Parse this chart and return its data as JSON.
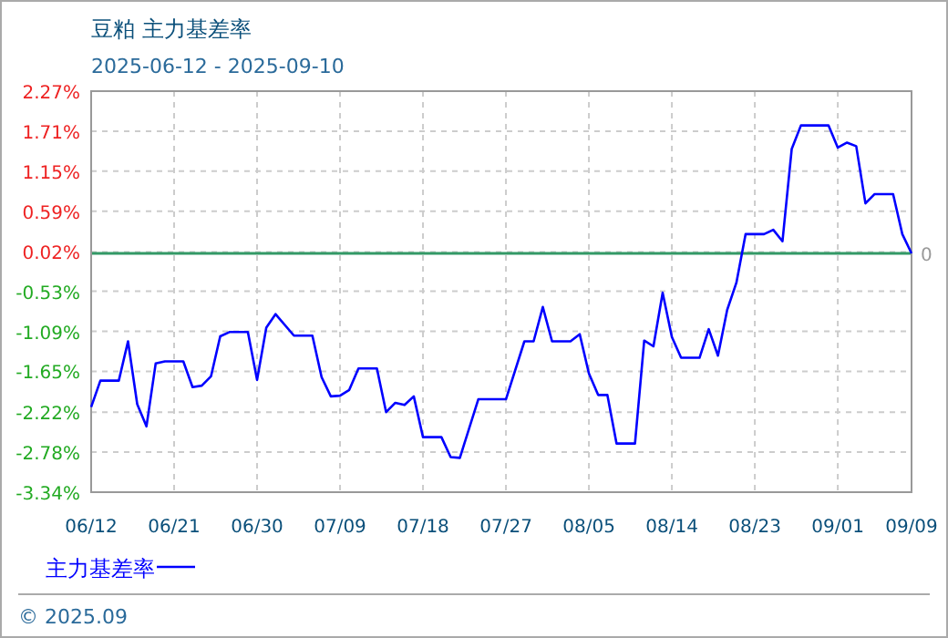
{
  "chart_data": {
    "type": "line",
    "title": "豆粕 主力基差率",
    "subtitle": "2025-06-12 - 2025-09-10",
    "annotations": [
      "© 2025.09"
    ],
    "x": [
      "2025-06-12",
      "2025-06-13",
      "2025-06-15",
      "2025-06-16",
      "2025-06-17",
      "2025-06-18",
      "2025-06-19",
      "2025-06-20",
      "2025-06-22",
      "2025-06-23",
      "2025-06-24",
      "2025-06-25",
      "2025-06-26",
      "2025-06-27",
      "2025-06-29",
      "2025-06-30",
      "2025-07-01",
      "2025-07-02",
      "2025-07-04",
      "2025-07-06",
      "2025-07-07",
      "2025-07-08",
      "2025-07-09",
      "2025-07-10",
      "2025-07-11",
      "2025-07-13",
      "2025-07-14",
      "2025-07-15",
      "2025-07-16",
      "2025-07-17",
      "2025-07-18",
      "2025-07-20",
      "2025-07-21",
      "2025-07-22",
      "2025-07-24",
      "2025-07-27",
      "2025-07-29",
      "2025-07-30",
      "2025-07-31",
      "2025-08-01",
      "2025-08-03",
      "2025-08-04",
      "2025-08-05",
      "2025-08-06",
      "2025-08-07",
      "2025-08-08",
      "2025-08-10",
      "2025-08-11",
      "2025-08-12",
      "2025-08-13",
      "2025-08-14",
      "2025-08-15",
      "2025-08-17",
      "2025-08-18",
      "2025-08-19",
      "2025-08-20",
      "2025-08-21",
      "2025-08-22",
      "2025-08-24",
      "2025-08-25",
      "2025-08-26",
      "2025-08-27",
      "2025-08-28",
      "2025-08-31",
      "2025-09-01",
      "2025-09-02",
      "2025-09-03",
      "2025-09-04",
      "2025-09-05",
      "2025-09-07",
      "2025-09-08",
      "2025-09-09"
    ],
    "series": [
      {
        "name": "主力基差率",
        "color": "#0000ff",
        "values": [
          -2.15,
          -1.78,
          -1.78,
          -1.23,
          -2.11,
          -2.42,
          -1.54,
          -1.51,
          -1.51,
          -1.87,
          -1.85,
          -1.72,
          -1.16,
          -1.1,
          -1.1,
          -1.77,
          -1.04,
          -0.85,
          -1.15,
          -1.15,
          -1.73,
          -2.0,
          -1.99,
          -1.91,
          -1.61,
          -1.61,
          -2.22,
          -2.09,
          -2.12,
          -2.0,
          -2.57,
          -2.57,
          -2.85,
          -2.86,
          -2.04,
          -2.04,
          -1.23,
          -1.23,
          -0.75,
          -1.23,
          -1.23,
          -1.13,
          -1.68,
          -1.98,
          -1.98,
          -2.66,
          -2.66,
          -1.22,
          -1.3,
          -0.55,
          -1.17,
          -1.46,
          -1.46,
          -1.06,
          -1.43,
          -0.79,
          -0.41,
          0.27,
          0.27,
          0.33,
          0.17,
          1.46,
          1.79,
          1.79,
          1.48,
          1.55,
          1.5,
          0.7,
          0.83,
          0.83,
          0.27,
          0.0
        ]
      }
    ],
    "xlim": [
      "2025-06-12",
      "2025-09-09"
    ],
    "xticks": [
      {
        "value": "2025-06-12",
        "label": "06/12"
      },
      {
        "value": "2025-06-21",
        "label": "06/21"
      },
      {
        "value": "2025-06-30",
        "label": "06/30"
      },
      {
        "value": "2025-07-09",
        "label": "07/09"
      },
      {
        "value": "2025-07-18",
        "label": "07/18"
      },
      {
        "value": "2025-07-27",
        "label": "07/27"
      },
      {
        "value": "2025-08-05",
        "label": "08/05"
      },
      {
        "value": "2025-08-14",
        "label": "08/14"
      },
      {
        "value": "2025-08-23",
        "label": "08/23"
      },
      {
        "value": "2025-09-01",
        "label": "09/01"
      },
      {
        "value": "2025-09-09",
        "label": "09/09"
      }
    ],
    "ylim": [
      -3.34,
      2.27
    ],
    "yticks": [
      {
        "value": -3.34,
        "label": "-3.34%"
      },
      {
        "value": -2.78,
        "label": "-2.78%"
      },
      {
        "value": -2.22,
        "label": "-2.22%"
      },
      {
        "value": -1.65,
        "label": "-1.65%"
      },
      {
        "value": -1.09,
        "label": "-1.09%"
      },
      {
        "value": -0.53,
        "label": "-0.53%"
      },
      {
        "value": 0.02,
        "label": "0.02%"
      },
      {
        "value": 0.59,
        "label": "0.59%"
      },
      {
        "value": 1.15,
        "label": "1.15%"
      },
      {
        "value": 1.71,
        "label": "1.71%"
      },
      {
        "value": 2.27,
        "label": "2.27%"
      }
    ],
    "ref_lines": [
      {
        "axis": "y",
        "value": 0,
        "label": "0",
        "color": "#339966"
      }
    ],
    "grid": true,
    "legend": "bottom",
    "marker": "none",
    "line_style": "solid"
  }
}
